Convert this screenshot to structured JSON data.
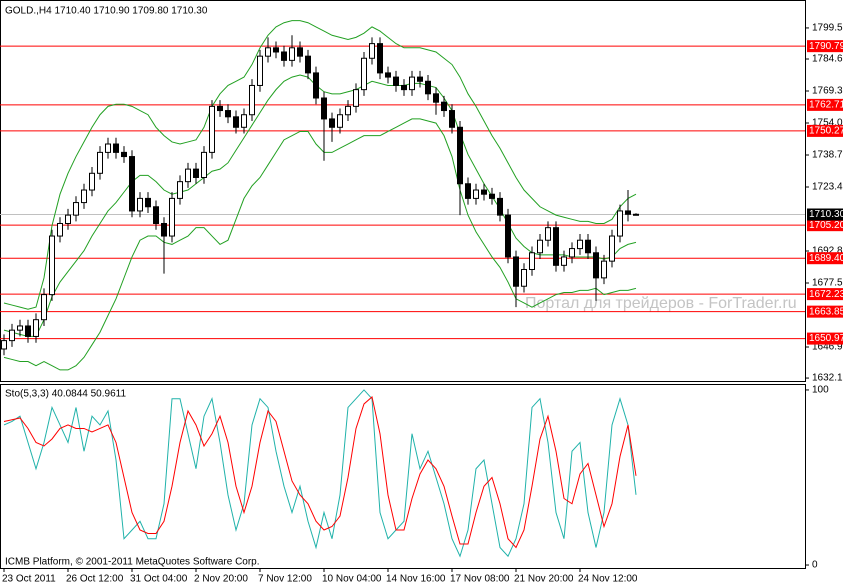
{
  "chart_data": [
    {
      "type": "candlestick",
      "title": "GOLD.,H4  1710.40 1710.90 1709.80 1710.30",
      "annotations": [
        "Портал для трейдеров - ForTrader.ru"
      ],
      "categories": [
        "23 Oct 2011",
        null,
        null,
        null,
        null,
        null,
        null,
        null,
        "26 Oct 12:00",
        null,
        null,
        null,
        null,
        null,
        null,
        null,
        "31 Oct 04:00",
        null,
        null,
        null,
        null,
        null,
        null,
        null,
        "2 Nov 20:00",
        null,
        null,
        null,
        null,
        null,
        null,
        null,
        "7 Nov 12:00",
        null,
        null,
        null,
        null,
        null,
        null,
        null,
        "10 Nov 04:00",
        null,
        null,
        null,
        null,
        null,
        null,
        null,
        "14 Nov 16:00",
        null,
        null,
        null,
        null,
        null,
        null,
        null,
        "17 Nov 08:00",
        null,
        null,
        null,
        null,
        null,
        null,
        null,
        "21 Nov 20:00",
        null,
        null,
        null,
        null,
        null,
        null,
        null,
        "24 Nov 12:00",
        null,
        null,
        null,
        null,
        null,
        null,
        null
      ],
      "open": [
        1646,
        1650,
        1655,
        1657,
        1652,
        1660,
        1672,
        1700,
        1706,
        1710,
        1716,
        1722,
        1730,
        1740,
        1744,
        1740,
        1738,
        1712,
        1718,
        1714,
        1706,
        1700,
        1718,
        1726,
        1732,
        1728,
        1740,
        1762,
        1760,
        1757,
        1752,
        1758,
        1772,
        1786,
        1790,
        1788,
        1784,
        1790,
        1786,
        1778,
        1766,
        1756,
        1752,
        1758,
        1762,
        1770,
        1785,
        1792,
        1778,
        1776,
        1772,
        1770,
        1776,
        1774,
        1768,
        1764,
        1760,
        1752,
        1725,
        1718,
        1722,
        1720,
        1718,
        1710,
        1690,
        1676,
        1684,
        1692,
        1698,
        1704,
        1686,
        1690,
        1694,
        1698,
        1692,
        1680,
        1688,
        1700,
        1712,
        1710.4
      ],
      "high": [
        1653,
        1658,
        1660,
        1660,
        1663,
        1675,
        1703,
        1709,
        1713,
        1719,
        1725,
        1733,
        1743,
        1747,
        1747,
        1743,
        1741,
        1721,
        1721,
        1717,
        1709,
        1721,
        1729,
        1735,
        1735,
        1743,
        1765,
        1765,
        1763,
        1760,
        1761,
        1775,
        1789,
        1795,
        1793,
        1791,
        1796,
        1793,
        1789,
        1781,
        1769,
        1759,
        1761,
        1765,
        1773,
        1788,
        1795,
        1795,
        1781,
        1779,
        1775,
        1779,
        1779,
        1777,
        1771,
        1767,
        1763,
        1755,
        1728,
        1725,
        1725,
        1723,
        1721,
        1713,
        1693,
        1687,
        1695,
        1701,
        1707,
        1707,
        1693,
        1697,
        1701,
        1701,
        1695,
        1691,
        1703,
        1715,
        1722,
        1710.9
      ],
      "low": [
        1643,
        1647,
        1652,
        1649,
        1649,
        1657,
        1669,
        1697,
        1703,
        1707,
        1713,
        1719,
        1727,
        1737,
        1737,
        1735,
        1709,
        1709,
        1711,
        1703,
        1682,
        1697,
        1715,
        1723,
        1725,
        1725,
        1737,
        1757,
        1754,
        1749,
        1749,
        1755,
        1769,
        1783,
        1785,
        1781,
        1781,
        1783,
        1775,
        1763,
        1736,
        1745,
        1749,
        1755,
        1759,
        1767,
        1782,
        1775,
        1773,
        1769,
        1767,
        1767,
        1771,
        1765,
        1758,
        1757,
        1749,
        1710,
        1715,
        1715,
        1717,
        1715,
        1707,
        1687,
        1666,
        1673,
        1681,
        1689,
        1695,
        1683,
        1683,
        1687,
        1691,
        1689,
        1669,
        1677,
        1685,
        1697,
        1707,
        1709.8
      ],
      "close": [
        1650,
        1655,
        1657,
        1652,
        1660,
        1672,
        1700,
        1706,
        1710,
        1716,
        1722,
        1730,
        1740,
        1744,
        1740,
        1738,
        1712,
        1718,
        1714,
        1706,
        1700,
        1718,
        1726,
        1732,
        1728,
        1740,
        1762,
        1760,
        1757,
        1752,
        1758,
        1772,
        1786,
        1790,
        1788,
        1784,
        1790,
        1786,
        1778,
        1766,
        1756,
        1752,
        1758,
        1762,
        1770,
        1785,
        1792,
        1778,
        1776,
        1772,
        1770,
        1776,
        1774,
        1768,
        1764,
        1760,
        1752,
        1725,
        1718,
        1722,
        1720,
        1718,
        1710,
        1690,
        1676,
        1684,
        1692,
        1698,
        1704,
        1686,
        1690,
        1694,
        1698,
        1692,
        1680,
        1688,
        1700,
        1712,
        1710.4,
        1710.3
      ],
      "up_color": "#ffffff",
      "down_color": "#000000",
      "bands": {
        "upper": [
          1668,
          1667,
          1666,
          1665,
          1666,
          1680,
          1705,
          1720,
          1730,
          1738,
          1745,
          1752,
          1758,
          1762,
          1763,
          1763,
          1762,
          1760,
          1758,
          1752,
          1748,
          1745,
          1744,
          1745,
          1746,
          1752,
          1762,
          1768,
          1772,
          1774,
          1776,
          1782,
          1790,
          1796,
          1800,
          1802,
          1803,
          1803,
          1802,
          1800,
          1798,
          1796,
          1795,
          1794,
          1795,
          1797,
          1800,
          1798,
          1795,
          1792,
          1790,
          1790,
          1790,
          1789,
          1788,
          1785,
          1782,
          1776,
          1768,
          1762,
          1755,
          1748,
          1742,
          1735,
          1728,
          1722,
          1718,
          1714,
          1712,
          1710,
          1709,
          1708,
          1707,
          1707,
          1706,
          1706,
          1708,
          1714,
          1718,
          1720
        ],
        "middle": [
          1655,
          1654,
          1653,
          1652,
          1652,
          1660,
          1671,
          1678,
          1683,
          1688,
          1693,
          1700,
          1706,
          1712,
          1716,
          1721,
          1726,
          1729,
          1729,
          1726,
          1722,
          1720,
          1721,
          1722,
          1725,
          1728,
          1731,
          1732,
          1735,
          1741,
          1747,
          1753,
          1759,
          1765,
          1770,
          1774,
          1776,
          1777,
          1776,
          1772,
          1769,
          1768,
          1768,
          1769,
          1770,
          1772,
          1774,
          1773,
          1772,
          1772,
          1772,
          1773,
          1773,
          1772,
          1771,
          1766,
          1760,
          1749,
          1739,
          1732,
          1725,
          1719,
          1713,
          1706,
          1699,
          1695,
          1692,
          1691,
          1691,
          1691,
          1691,
          1690,
          1690,
          1690,
          1690,
          1689,
          1690,
          1694,
          1696,
          1697
        ],
        "lower": [
          1642,
          1641,
          1640,
          1640,
          1638,
          1640,
          1638,
          1636,
          1636,
          1638,
          1642,
          1648,
          1654,
          1662,
          1670,
          1680,
          1690,
          1698,
          1700,
          1700,
          1697,
          1696,
          1698,
          1700,
          1704,
          1704,
          1700,
          1696,
          1698,
          1708,
          1718,
          1724,
          1728,
          1734,
          1740,
          1746,
          1748,
          1750,
          1750,
          1744,
          1740,
          1740,
          1742,
          1744,
          1746,
          1748,
          1748,
          1748,
          1750,
          1752,
          1754,
          1756,
          1756,
          1755,
          1754,
          1748,
          1738,
          1722,
          1710,
          1702,
          1696,
          1690,
          1685,
          1678,
          1670,
          1668,
          1666,
          1668,
          1670,
          1672,
          1673,
          1673,
          1674,
          1674,
          1675,
          1672,
          1673,
          1674,
          1674,
          1675
        ]
      },
      "band_color": "#22a022",
      "levels": [
        1790.79,
        1762.71,
        1750.27,
        {
          "value": 1705.2,
          "label": "1705.20"
        },
        {
          "value": 1689.4,
          "label": "1689.40"
        },
        1672.23,
        1663.85,
        1650.97
      ],
      "level_color": "#ff0000",
      "current_price": {
        "value": 1710.3,
        "label": "1710.30"
      },
      "ylim": [
        1630.69,
        1812.38
      ],
      "yticks": [
        {
          "value": 1799.5,
          "label": "1799.50"
        },
        1784.65,
        1769.35,
        1754.05,
        1738.75,
        1723.45,
        1692.85,
        1677.55,
        1646.95,
        {
          "value": 1632.1,
          "label": "1632.10"
        }
      ]
    },
    {
      "type": "line",
      "title": "Sto(5,3,3) 40.0844 50.9611",
      "annotations": [
        "ICMB Platform, © 2001-2011 MetaQuotes Software Corp."
      ],
      "series": [
        {
          "color": "#20b2aa",
          "values": [
            80,
            82,
            85,
            70,
            55,
            70,
            90,
            80,
            70,
            90,
            65,
            85,
            80,
            88,
            60,
            15,
            20,
            25,
            15,
            15,
            35,
            95,
            95,
            75,
            55,
            85,
            95,
            70,
            40,
            20,
            35,
            80,
            95,
            90,
            65,
            45,
            30,
            45,
            25,
            10,
            30,
            15,
            40,
            90,
            95,
            100,
            95,
            30,
            15,
            20,
            25,
            75,
            55,
            65,
            50,
            35,
            15,
            5,
            20,
            55,
            60,
            35,
            10,
            5,
            15,
            35,
            90,
            95,
            70,
            30,
            15,
            65,
            70,
            30,
            10,
            30,
            80,
            95,
            80,
            40.0844
          ]
        },
        {
          "color": "#ff0000",
          "values": [
            82,
            83,
            84,
            78,
            70,
            68,
            72,
            78,
            80,
            78,
            78,
            76,
            78,
            80,
            70,
            50,
            30,
            20,
            18,
            18,
            25,
            45,
            70,
            88,
            80,
            68,
            75,
            85,
            70,
            45,
            30,
            45,
            70,
            88,
            82,
            65,
            48,
            40,
            35,
            25,
            20,
            22,
            28,
            50,
            78,
            92,
            96,
            75,
            40,
            20,
            20,
            38,
            52,
            60,
            55,
            45,
            28,
            12,
            12,
            30,
            45,
            50,
            35,
            15,
            10,
            20,
            45,
            72,
            85,
            65,
            38,
            35,
            52,
            58,
            40,
            22,
            35,
            62,
            80,
            50.9611
          ]
        }
      ],
      "ylim": [
        -1.7,
        103.4
      ],
      "yticks": [
        100,
        0
      ]
    }
  ]
}
